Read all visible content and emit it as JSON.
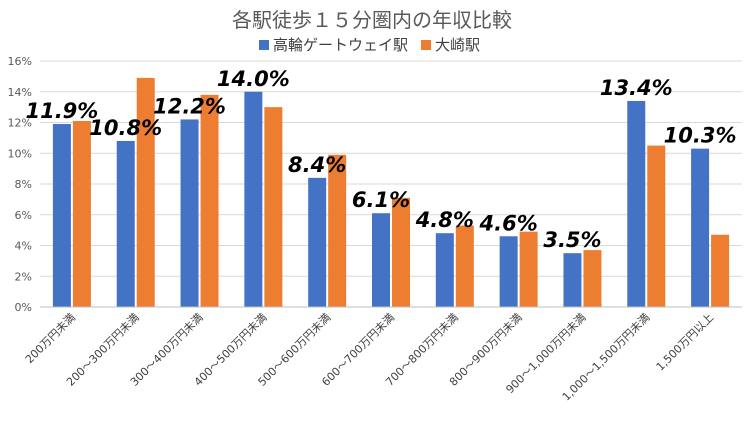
{
  "chart_data": {
    "type": "bar",
    "title": "各駅徒歩１５分圏内の年収比較",
    "categories": [
      "200万円未満",
      "200～300万円未満",
      "300～400万円未満",
      "400～500万円未満",
      "500～600万円未満",
      "600～700万円未満",
      "700～800万円未満",
      "800～900万円未満",
      "900～1,000万円未満",
      "1,000～1,500万円未満",
      "1,500万円以上"
    ],
    "series": [
      {
        "name": "高輪ゲートウェイ駅",
        "color": "#4472C4",
        "values": [
          11.9,
          10.8,
          12.2,
          14.0,
          8.4,
          6.1,
          4.8,
          4.6,
          3.5,
          13.4,
          10.3
        ]
      },
      {
        "name": "大崎駅",
        "color": "#ED7D31",
        "values": [
          12.1,
          14.9,
          13.8,
          13.0,
          9.9,
          7.1,
          5.3,
          4.9,
          3.7,
          10.5,
          4.7
        ]
      }
    ],
    "data_labels": [
      "11.9%",
      "10.8%",
      "12.2%",
      "14.0%",
      "8.4%",
      "6.1%",
      "4.8%",
      "4.6%",
      "3.5%",
      "13.4%",
      "10.3%"
    ],
    "yticks": [
      "0%",
      "2%",
      "4%",
      "6%",
      "8%",
      "10%",
      "12%",
      "14%",
      "16%"
    ],
    "ylim": [
      0,
      16
    ],
    "grid": true,
    "legend_position": "top-center"
  }
}
